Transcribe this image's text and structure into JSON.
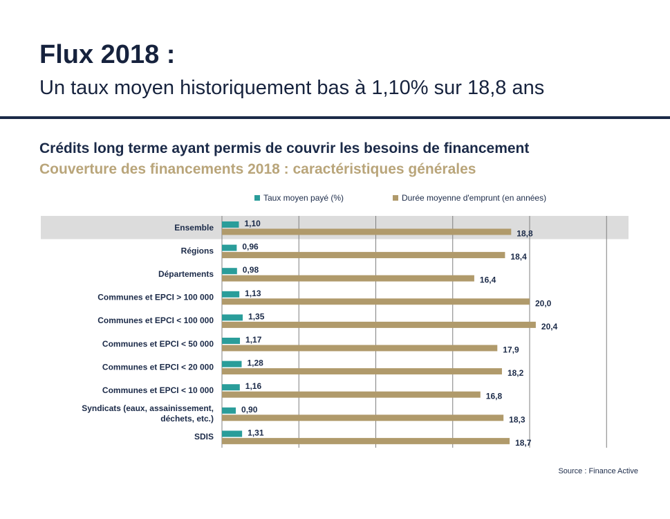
{
  "header": {
    "title": "Flux 2018 :",
    "subtitle": "Un taux moyen historiquement bas à 1,10% sur 18,8 ans"
  },
  "chart_heading": "Crédits long terme ayant permis de couvrir les besoins de financement",
  "chart_subheading": "Couverture des financements 2018 : caractéristiques générales",
  "source": "Source : Finance Active",
  "colors": {
    "taux": "#2a9d9a",
    "duree": "#b09a6b",
    "highlight": "#dcdcdc",
    "text": "#1b2a48"
  },
  "chart_data": {
    "type": "bar",
    "orientation": "horizontal",
    "categories": [
      [
        "Ensemble"
      ],
      [
        "Régions"
      ],
      [
        "Départements"
      ],
      [
        "Communes et EPCI > 100 000"
      ],
      [
        "Communes et EPCI < 100 000"
      ],
      [
        "Communes et EPCI < 50 000"
      ],
      [
        "Communes et EPCI < 20 000"
      ],
      [
        "Communes et EPCI < 10 000"
      ],
      [
        "Syndicats (eaux, assainissement,",
        "déchets, etc.)"
      ],
      [
        "SDIS"
      ]
    ],
    "highlighted_category": 0,
    "series": [
      {
        "name": "Taux moyen payé (%)",
        "values": [
          1.1,
          0.96,
          0.98,
          1.13,
          1.35,
          1.17,
          1.28,
          1.16,
          0.9,
          1.31
        ],
        "labels": [
          "1,10",
          "0,96",
          "0,98",
          "1,13",
          "1,35",
          "1,17",
          "1,28",
          "1,16",
          "0,90",
          "1,31"
        ]
      },
      {
        "name": "Durée moyenne d'emprunt (en années)",
        "values": [
          18.8,
          18.4,
          16.4,
          20.0,
          20.4,
          17.9,
          18.2,
          16.8,
          18.3,
          18.7
        ],
        "labels": [
          "18,8",
          "18,4",
          "16,4",
          "20,0",
          "20,4",
          "17,9",
          "18,2",
          "16,8",
          "18,3",
          "18,7"
        ]
      }
    ],
    "xlim": [
      0,
      25
    ],
    "grid": "vertical",
    "legend_position": "top"
  }
}
